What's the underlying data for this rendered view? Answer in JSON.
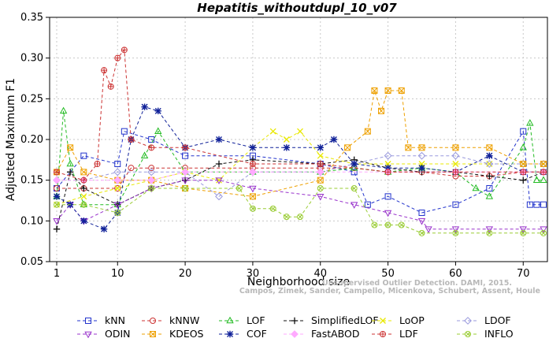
{
  "chart_data": {
    "type": "line",
    "title": "Hepatitis_withoutdupl_10_v07",
    "xlabel": "Neighborhood size",
    "ylabel": "Adjusted Maximum F1",
    "xlim": [
      1,
      73
    ],
    "ylim": [
      0.05,
      0.35
    ],
    "xticks": [
      "1",
      "10",
      "20",
      "30",
      "40",
      "50",
      "60",
      "70"
    ],
    "yticks": [
      "0.05",
      "0.10",
      "0.15",
      "0.20",
      "0.25",
      "0.30",
      "0.35"
    ],
    "watermark": [
      "Campos, Zimek, Sander, Campello, Micenkova, Schubert, Assent, Houle",
      "Unsupervised Outlier Detection. DAMI, 2015."
    ],
    "legend_position": "bottom",
    "series": [
      {
        "name": "kNN",
        "color": "#2233cc",
        "marker": "square",
        "x": [
          1,
          5,
          10,
          11,
          15,
          20,
          30,
          40,
          45,
          47,
          50,
          55,
          60,
          65,
          70,
          71,
          72,
          73
        ],
        "values": [
          0.14,
          0.18,
          0.17,
          0.21,
          0.2,
          0.18,
          0.18,
          0.17,
          0.16,
          0.12,
          0.13,
          0.11,
          0.12,
          0.14,
          0.21,
          0.12,
          0.12,
          0.12
        ]
      },
      {
        "name": "kNNW",
        "color": "#cc3333",
        "marker": "circle",
        "x": [
          1,
          5,
          10,
          12,
          15,
          20,
          30,
          40,
          45,
          50,
          55,
          60,
          65,
          70,
          73
        ],
        "values": [
          0.14,
          0.14,
          0.14,
          0.165,
          0.165,
          0.165,
          0.165,
          0.165,
          0.165,
          0.16,
          0.16,
          0.155,
          0.155,
          0.16,
          0.16
        ]
      },
      {
        "name": "LOF",
        "color": "#22bb22",
        "marker": "triangle-up",
        "x": [
          1,
          2,
          3,
          5,
          10,
          14,
          16,
          20,
          30,
          40,
          45,
          50,
          55,
          60,
          63,
          65,
          70,
          71,
          72,
          73
        ],
        "values": [
          0.13,
          0.235,
          0.17,
          0.12,
          0.12,
          0.18,
          0.21,
          0.16,
          0.16,
          0.16,
          0.165,
          0.16,
          0.165,
          0.16,
          0.14,
          0.13,
          0.19,
          0.22,
          0.15,
          0.15
        ]
      },
      {
        "name": "SimplifiedLOF",
        "color": "#111111",
        "marker": "plus",
        "x": [
          1,
          3,
          5,
          10,
          15,
          20,
          25,
          30,
          40,
          45,
          50,
          55,
          60,
          65,
          70,
          73
        ],
        "values": [
          0.09,
          0.16,
          0.14,
          0.12,
          0.14,
          0.15,
          0.17,
          0.175,
          0.17,
          0.175,
          0.165,
          0.16,
          0.16,
          0.155,
          0.15,
          0.16
        ]
      },
      {
        "name": "LoOP",
        "color": "#e8e800",
        "marker": "cross",
        "x": [
          1,
          5,
          10,
          15,
          20,
          25,
          30,
          33,
          35,
          37,
          40,
          45,
          50,
          55,
          60,
          65,
          70,
          73
        ],
        "values": [
          0.12,
          0.13,
          0.14,
          0.15,
          0.16,
          0.15,
          0.19,
          0.21,
          0.2,
          0.21,
          0.18,
          0.17,
          0.17,
          0.17,
          0.17,
          0.17,
          0.17,
          0.17
        ]
      },
      {
        "name": "LDOF",
        "color": "#9999dd",
        "marker": "diamond",
        "x": [
          1,
          5,
          10,
          15,
          20,
          25,
          30,
          40,
          45,
          50,
          55,
          60,
          65,
          70,
          73
        ],
        "values": [
          0.15,
          0.15,
          0.16,
          0.16,
          0.16,
          0.13,
          0.16,
          0.16,
          0.17,
          0.18,
          0.18,
          0.18,
          0.17,
          0.17,
          0.17
        ]
      },
      {
        "name": "ODIN",
        "color": "#9933cc",
        "marker": "triangle-down",
        "x": [
          1,
          3,
          5,
          10,
          15,
          20,
          25,
          30,
          40,
          45,
          50,
          55,
          56,
          60,
          65,
          70,
          73
        ],
        "values": [
          0.1,
          0.12,
          0.1,
          0.12,
          0.14,
          0.15,
          0.15,
          0.14,
          0.13,
          0.12,
          0.11,
          0.1,
          0.09,
          0.09,
          0.09,
          0.09,
          0.09
        ]
      },
      {
        "name": "KDEOS",
        "color": "#eea000",
        "marker": "square-x",
        "x": [
          1,
          3,
          5,
          10,
          15,
          20,
          30,
          40,
          44,
          47,
          48,
          49,
          50,
          52,
          53,
          55,
          60,
          65,
          70,
          73
        ],
        "values": [
          0.16,
          0.19,
          0.16,
          0.15,
          0.15,
          0.14,
          0.13,
          0.15,
          0.19,
          0.21,
          0.26,
          0.235,
          0.26,
          0.26,
          0.19,
          0.19,
          0.19,
          0.19,
          0.17,
          0.17
        ]
      },
      {
        "name": "COF",
        "color": "#112299",
        "marker": "asterisk",
        "x": [
          1,
          3,
          5,
          8,
          10,
          12,
          14,
          16,
          20,
          25,
          30,
          35,
          40,
          42,
          45,
          50,
          55,
          60,
          65,
          70,
          73
        ],
        "values": [
          0.13,
          0.12,
          0.1,
          0.09,
          0.11,
          0.2,
          0.24,
          0.235,
          0.19,
          0.2,
          0.19,
          0.19,
          0.19,
          0.2,
          0.17,
          0.165,
          0.165,
          0.16,
          0.18,
          0.16,
          0.16
        ]
      },
      {
        "name": "FastABOD",
        "color": "#ffaaff",
        "marker": "diamond-filled",
        "x": [
          1,
          5,
          10,
          15,
          20,
          30,
          40,
          50,
          60,
          70,
          73
        ],
        "values": [
          0.15,
          0.15,
          0.15,
          0.15,
          0.16,
          0.16,
          0.16,
          0.16,
          0.16,
          0.16,
          0.16
        ]
      },
      {
        "name": "LDF",
        "color": "#cc3333",
        "marker": "circle-plus",
        "x": [
          1,
          5,
          7,
          8,
          9,
          10,
          11,
          12,
          15,
          20,
          30,
          40,
          50,
          60,
          70,
          73
        ],
        "values": [
          0.16,
          0.15,
          0.17,
          0.285,
          0.265,
          0.3,
          0.31,
          0.2,
          0.19,
          0.19,
          0.17,
          0.17,
          0.16,
          0.16,
          0.16,
          0.16
        ]
      },
      {
        "name": "INFLO",
        "color": "#99cc33",
        "marker": "circle-x",
        "x": [
          1,
          5,
          10,
          15,
          20,
          28,
          30,
          33,
          35,
          37,
          40,
          45,
          48,
          50,
          52,
          55,
          60,
          65,
          70,
          73
        ],
        "values": [
          0.12,
          0.12,
          0.11,
          0.14,
          0.14,
          0.14,
          0.115,
          0.115,
          0.105,
          0.105,
          0.14,
          0.14,
          0.095,
          0.095,
          0.095,
          0.085,
          0.085,
          0.085,
          0.085,
          0.085
        ]
      }
    ]
  }
}
